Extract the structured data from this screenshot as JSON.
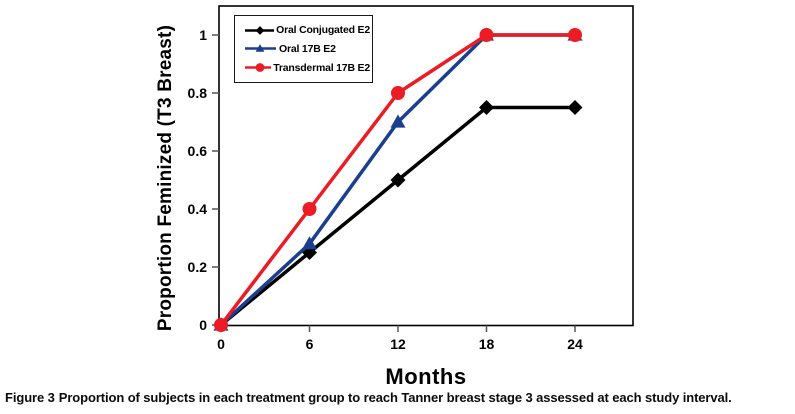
{
  "figure": {
    "caption_label": "Figure 3",
    "caption_text": "Proportion of subjects in each treatment group to reach Tanner breast stage 3 assessed at each study interval."
  },
  "chart_data": {
    "type": "line",
    "title": "",
    "xlabel": "Months",
    "ylabel": "Proportion Feminized (T3 Breast)",
    "x": [
      0,
      6,
      12,
      18,
      24
    ],
    "xlim": [
      0,
      28
    ],
    "ylim": [
      0,
      1.1
    ],
    "xticks": [
      0,
      6,
      12,
      18,
      24
    ],
    "xtick_labels": [
      "0",
      "6",
      "12",
      "18",
      "24"
    ],
    "yticks": [
      0,
      0.2,
      0.4,
      0.6,
      0.8,
      1
    ],
    "ytick_labels": [
      "0",
      "0.2",
      "0.4",
      "0.6",
      "0.8",
      "1"
    ],
    "grid": false,
    "legend_position": "upper-left-inside",
    "axis_color": "#000000",
    "tick_color": "#555555",
    "series": [
      {
        "name": "Oral Conjugated E2",
        "marker": "diamond",
        "color": "#000000",
        "values": [
          0,
          0.25,
          0.5,
          0.75,
          0.75
        ]
      },
      {
        "name": "Oral 17B E2",
        "marker": "triangle",
        "color": "#1b3f8f",
        "values": [
          0,
          0.28,
          0.7,
          1,
          1
        ]
      },
      {
        "name": "Transdermal 17B E2",
        "marker": "circle",
        "color": "#eb1c24",
        "values": [
          0,
          0.4,
          0.8,
          1,
          1
        ]
      }
    ]
  }
}
